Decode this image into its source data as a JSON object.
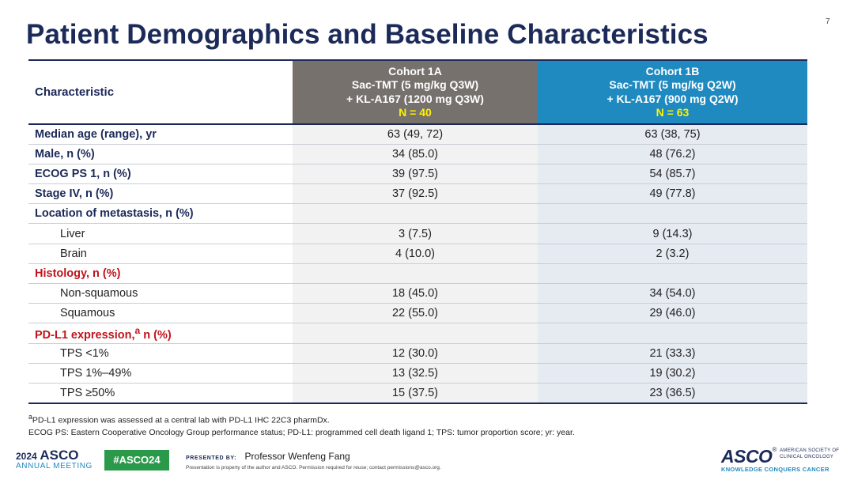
{
  "slide": {
    "number": "7",
    "title": "Patient Demographics and Baseline Characteristics"
  },
  "table": {
    "header": {
      "characteristic": "Characteristic",
      "cohort_1a": {
        "name": "Cohort 1A",
        "line1": "Sac-TMT (5 mg/kg Q3W)",
        "line2": "+ KL-A167 (1200 mg Q3W)",
        "n": "N = 40"
      },
      "cohort_1b": {
        "name": "Cohort 1B",
        "line1": "Sac-TMT (5 mg/kg Q2W)",
        "line2": "+ KL-A167 (900 mg Q2W)",
        "n": "N = 63"
      }
    },
    "rows": [
      {
        "label": "Median age (range), yr",
        "c1a": "63 (49, 72)",
        "c1b": "63 (38, 75)"
      },
      {
        "label": "Male, n (%)",
        "c1a": "34 (85.0)",
        "c1b": "48 (76.2)"
      },
      {
        "label": "ECOG PS 1, n (%)",
        "c1a": "39 (97.5)",
        "c1b": "54 (85.7)"
      },
      {
        "label": "Stage IV, n (%)",
        "c1a": "37 (92.5)",
        "c1b": "49 (77.8)"
      },
      {
        "label": "Location of metastasis, n (%)",
        "c1a": "",
        "c1b": ""
      },
      {
        "label": "Liver",
        "c1a": "3 (7.5)",
        "c1b": "9 (14.3)"
      },
      {
        "label": "Brain",
        "c1a": "4 (10.0)",
        "c1b": "2 (3.2)"
      },
      {
        "label": "Histology, n (%)",
        "c1a": "",
        "c1b": ""
      },
      {
        "label": "Non-squamous",
        "c1a": "18 (45.0)",
        "c1b": "34 (54.0)"
      },
      {
        "label": "Squamous",
        "c1a": "22 (55.0)",
        "c1b": "29 (46.0)"
      },
      {
        "label": "PD-L1 expression,",
        "label_sup": "a",
        "label_suffix": " n (%)",
        "c1a": "",
        "c1b": ""
      },
      {
        "label": "TPS <1%",
        "c1a": "12 (30.0)",
        "c1b": "21 (33.3)"
      },
      {
        "label": "TPS 1%–49%",
        "c1a": "13 (32.5)",
        "c1b": "19 (30.2)"
      },
      {
        "label": "TPS ≥50%",
        "c1a": "15 (37.5)",
        "c1b": "23 (36.5)"
      }
    ]
  },
  "footnotes": {
    "sup": "a",
    "note_a": "PD-L1 expression was assessed at a central lab with PD-L1 IHC 22C3 pharmDx.",
    "abbrev": "ECOG PS: Eastern Cooperative Oncology Group performance status; PD-L1: programmed  cell death ligand 1; TPS: tumor proportion score; yr: year."
  },
  "footer": {
    "meeting_year": "2024",
    "meeting_org": "ASCO",
    "meeting_name": "ANNUAL MEETING",
    "hashtag": "#ASCO24",
    "presented_by_label": "PRESENTED BY:",
    "presenter": "Professor Wenfeng Fang",
    "disclaimer": "Presentation is property of the author and ASCO. Permission required for reuse; contact permissions@asco.org.",
    "logo_text": "ASCO",
    "logo_reg": "®",
    "logo_side_line1": "AMERICAN SOCIETY OF",
    "logo_side_line2": "CLINICAL ONCOLOGY",
    "logo_tagline": "KNOWLEDGE CONQUERS CANCER"
  },
  "colors": {
    "title_navy": "#1b2a59",
    "cohort_1a_header": "#77716e",
    "cohort_1b_header": "#1f8ac0",
    "n_yellow": "#fff200",
    "section_red": "#c0141b",
    "hashtag_green": "#2a9a4a"
  }
}
